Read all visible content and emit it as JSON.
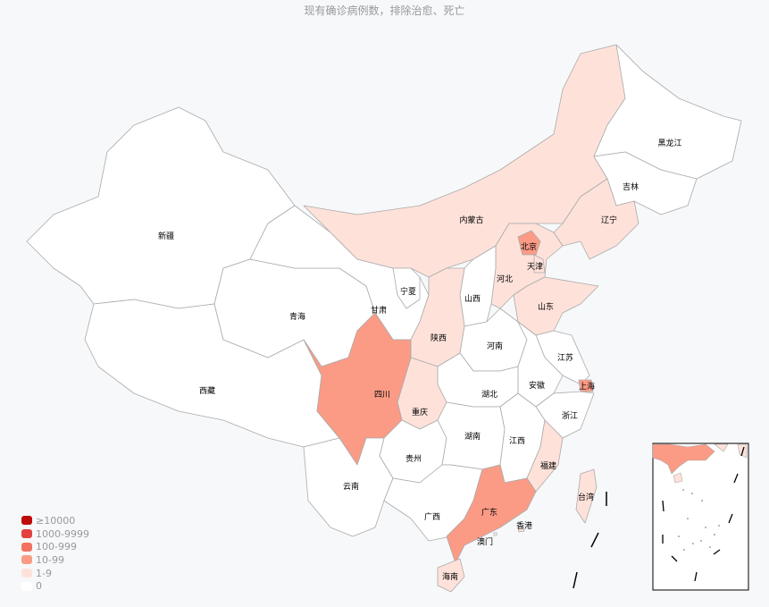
{
  "title": "现有确诊病例数，排除治愈、死亡",
  "legend": [
    {
      "label": "≥10000",
      "color": "#bf0a0a"
    },
    {
      "label": "1000-9999",
      "color": "#e34040"
    },
    {
      "label": "100-999",
      "color": "#f2735f"
    },
    {
      "label": "10-99",
      "color": "#fb9b85"
    },
    {
      "label": "1-9",
      "color": "#fee2da"
    },
    {
      "label": "0",
      "color": "#ffffff"
    }
  ],
  "regions": [
    {
      "name": "新疆",
      "level": 5
    },
    {
      "name": "西藏",
      "level": 5
    },
    {
      "name": "青海",
      "level": 5
    },
    {
      "name": "甘肃",
      "level": 5
    },
    {
      "name": "内蒙古",
      "level": 4
    },
    {
      "name": "黑龙江",
      "level": 5
    },
    {
      "name": "吉林",
      "level": 5
    },
    {
      "name": "辽宁",
      "level": 4
    },
    {
      "name": "河北",
      "level": 4
    },
    {
      "name": "北京",
      "level": 3
    },
    {
      "name": "天津",
      "level": 4
    },
    {
      "name": "山西",
      "level": 5
    },
    {
      "name": "山东",
      "level": 4
    },
    {
      "name": "宁夏",
      "level": 5
    },
    {
      "name": "陕西",
      "level": 4
    },
    {
      "name": "河南",
      "level": 5
    },
    {
      "name": "江苏",
      "level": 5
    },
    {
      "name": "安徽",
      "level": 5
    },
    {
      "name": "上海",
      "level": 3
    },
    {
      "name": "浙江",
      "level": 5
    },
    {
      "name": "湖北",
      "level": 5
    },
    {
      "name": "重庆",
      "level": 4
    },
    {
      "name": "四川",
      "level": 3
    },
    {
      "name": "贵州",
      "level": 5
    },
    {
      "name": "云南",
      "level": 5
    },
    {
      "name": "湖南",
      "level": 5
    },
    {
      "name": "江西",
      "level": 5
    },
    {
      "name": "福建",
      "level": 4
    },
    {
      "name": "广西",
      "level": 5
    },
    {
      "name": "广东",
      "level": 3
    },
    {
      "name": "海南",
      "level": 4
    },
    {
      "name": "台湾",
      "level": 4
    },
    {
      "name": "香港",
      "level": 4
    },
    {
      "name": "澳门",
      "level": 5
    }
  ]
}
